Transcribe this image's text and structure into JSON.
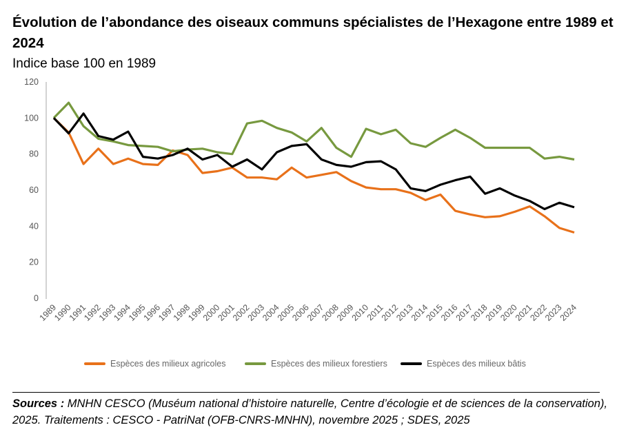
{
  "chart_data": {
    "type": "line",
    "title": "Évolution de l’abondance des oiseaux communs spécialistes de l’Hexagone entre 1989 et 2024",
    "subtitle": "Indice base 100 en 1989",
    "xlabel": "",
    "ylabel": "",
    "ylim": [
      0,
      120
    ],
    "yticks": [
      "0",
      "20",
      "40",
      "60",
      "80",
      "100",
      "120"
    ],
    "x": [
      "1989",
      "1990",
      "1991",
      "1992",
      "1993",
      "1994",
      "1995",
      "1996",
      "1997",
      "1998",
      "1999",
      "2000",
      "2001",
      "2002",
      "2003",
      "2004",
      "2005",
      "2006",
      "2007",
      "2008",
      "2009",
      "2010",
      "2011",
      "2012",
      "2013",
      "2014",
      "2015",
      "2016",
      "2017",
      "2018",
      "2019",
      "2020",
      "2021",
      "2022",
      "2023",
      "2024"
    ],
    "legend_position": "bottom",
    "grid": false,
    "series": [
      {
        "name": "Espèces des milieux agricoles",
        "color": "#E8711A",
        "values": [
          100,
          92,
          74.5,
          83,
          74.5,
          77.5,
          74.5,
          74,
          82,
          79.5,
          69.5,
          70.5,
          72.5,
          67,
          67,
          66,
          72.5,
          67,
          68.5,
          70,
          65,
          61.5,
          60.5,
          60.5,
          58.5,
          54.5,
          57.5,
          48.5,
          46.5,
          45,
          45.5,
          48,
          51,
          45.5,
          39,
          36.5
        ]
      },
      {
        "name": "Espèces des milieux forestiers",
        "color": "#77993F",
        "values": [
          100,
          108.5,
          95.5,
          88.5,
          87,
          85,
          84.5,
          84,
          81.5,
          82.5,
          83,
          81,
          80,
          97,
          98.5,
          94.5,
          92,
          87,
          94.5,
          83.5,
          78.5,
          94,
          91,
          93.5,
          86,
          84,
          89,
          93.5,
          89,
          83.5,
          83.5,
          83.5,
          83.5,
          77.5,
          78.5,
          77
        ]
      },
      {
        "name": "Espèces des milieux bâtis",
        "color": "#000000",
        "values": [
          100,
          91.5,
          102.5,
          90,
          88,
          92.5,
          78.5,
          77.5,
          79.5,
          83,
          77,
          79.5,
          73,
          77,
          71.5,
          81,
          84.5,
          85.5,
          77,
          74,
          73,
          75.5,
          76,
          71.5,
          61,
          59.5,
          63,
          65.5,
          67.5,
          58,
          61,
          57,
          54,
          49.5,
          53,
          50.5
        ]
      }
    ]
  },
  "source": {
    "label": "Sources :",
    "text": " MNHN CESCO (Muséum national d’histoire naturelle, Centre d’écologie et de sciences de la conservation), 2025. Traitements : CESCO - PatriNat (OFB-CNRS-MNHN), novembre 2025 ; SDES, 2025"
  }
}
